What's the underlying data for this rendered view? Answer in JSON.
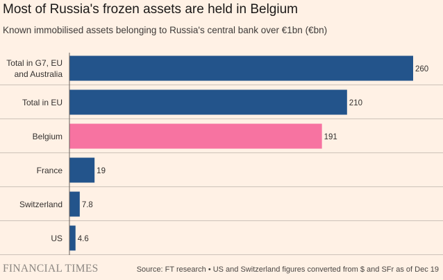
{
  "title": "Most of Russia's frozen assets are held in Belgium",
  "subtitle": "Known immobilised assets belonging to Russia's central bank over €1bn (€bn)",
  "footer": {
    "brand": "FINANCIAL TIMES",
    "source": "Source: FT research • US and Switzerland figures converted from $ and SFr as of Dec 19"
  },
  "colors": {
    "background": "#fff1e5",
    "bar": "#23548b",
    "highlight": "#f773a1",
    "gridline": "#ccc2b8",
    "text": "#33302e"
  },
  "chart_data": {
    "type": "bar",
    "orientation": "horizontal",
    "categories": [
      [
        "Total in G7, EU",
        "and Australia"
      ],
      [
        "Total in EU"
      ],
      [
        "Belgium"
      ],
      [
        "France"
      ],
      [
        "Switzerland"
      ],
      [
        "US"
      ]
    ],
    "values": [
      260,
      210,
      191,
      19,
      7.8,
      4.6
    ],
    "value_labels": [
      "260",
      "210",
      "191",
      "19",
      "7.8",
      "4.6"
    ],
    "highlight_index": 2,
    "xlim": [
      0,
      260
    ],
    "grid": true
  }
}
